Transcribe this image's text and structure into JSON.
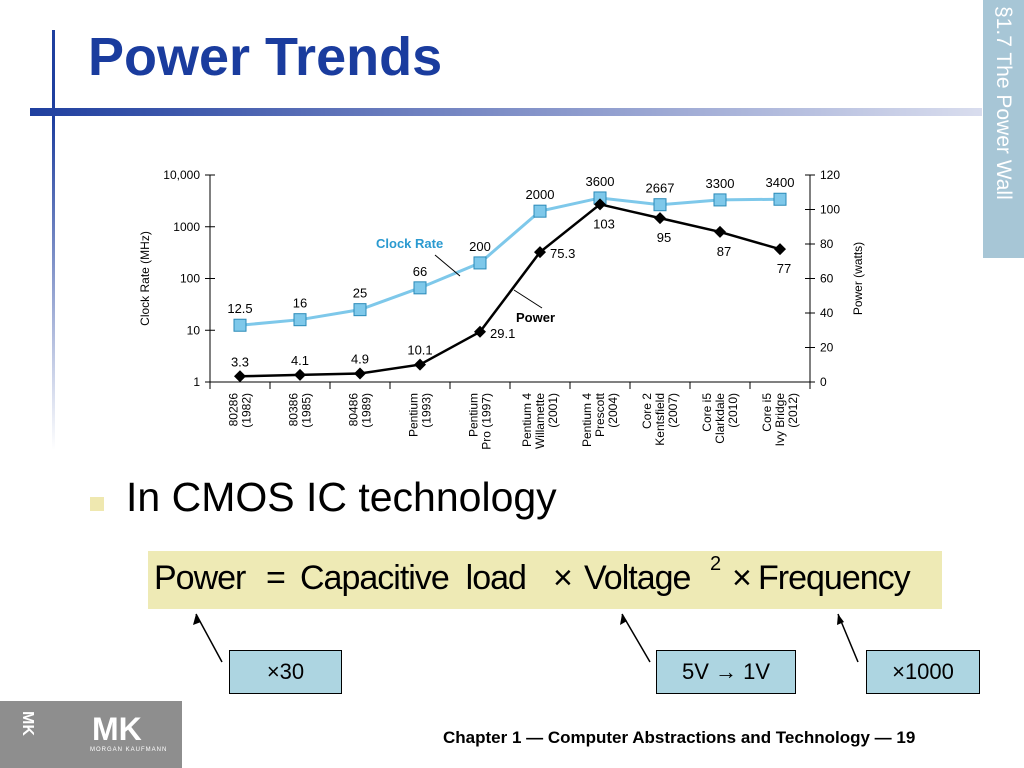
{
  "slide": {
    "title": "Power Trends",
    "section": "§1.7 The Power Wall",
    "bullet": "In CMOS IC technology",
    "formula": {
      "power": "Power",
      "eq": "=",
      "cap_load": "Capacitive  load",
      "times1": "×",
      "voltage": "Voltage",
      "exp": "2",
      "times2": "×",
      "frequency": "Frequency"
    },
    "notes": {
      "cap": "×30",
      "volt": "5V → 1V",
      "freq": "×1000"
    },
    "footer": "Chapter 1 — Computer Abstractions and Technology — 19",
    "logo": {
      "small": "MK",
      "big": "MK",
      "sub": "MORGAN KAUFMANN"
    },
    "colors": {
      "title": "#1a3c9e",
      "clock_series": "#7ec8ea",
      "power_series": "#000000",
      "formula_bg": "#eeeab5",
      "note_bg": "#add5e1"
    }
  },
  "chart_data": {
    "type": "line",
    "categories": [
      [
        "80286",
        "(1982)"
      ],
      [
        "80386",
        "(1985)"
      ],
      [
        "80486",
        "(1989)"
      ],
      [
        "Pentium",
        "(1993)"
      ],
      [
        "Pentium",
        "Pro (1997)"
      ],
      [
        "Pentium 4",
        "Willamette",
        "(2001)"
      ],
      [
        "Pentium 4",
        "Prescott",
        "(2004)"
      ],
      [
        "Core 2",
        "Kentsfield",
        "(2007)"
      ],
      [
        "Core i5",
        "Clarkdale",
        "(2010)"
      ],
      [
        "Core i5",
        "Ivy Bridge",
        "(2012)"
      ]
    ],
    "series": [
      {
        "name": "Clock Rate",
        "axis": "left",
        "values": [
          12.5,
          16,
          25,
          66,
          200,
          2000,
          3600,
          2667,
          3300,
          3400
        ],
        "labels": [
          "12.5",
          "16",
          "25",
          "66",
          "200",
          "2000",
          "3600",
          "2667",
          "3300",
          "3400"
        ]
      },
      {
        "name": "Power",
        "axis": "right",
        "values": [
          3.3,
          4.1,
          4.9,
          10.1,
          29.1,
          75.3,
          103,
          95,
          87,
          77
        ],
        "labels": [
          "3.3",
          "4.1",
          "4.9",
          "10.1",
          "29.1",
          "75.3",
          "103",
          "95",
          "87",
          "77"
        ]
      }
    ],
    "left_axis": {
      "label": "Clock Rate (MHz)",
      "scale": "log",
      "ylim": [
        1,
        10000
      ],
      "ticks": [
        "1",
        "10",
        "100",
        "1000",
        "10,000"
      ]
    },
    "right_axis": {
      "label": "Power (watts)",
      "scale": "linear",
      "ylim": [
        0,
        120
      ],
      "ticks": [
        "0",
        "20",
        "40",
        "60",
        "80",
        "100",
        "120"
      ]
    },
    "grid": false
  }
}
